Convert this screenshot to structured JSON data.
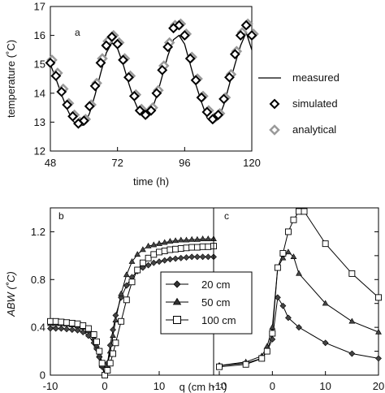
{
  "chart_data": [
    {
      "panel": "a",
      "type": "line",
      "xlabel": "time (h)",
      "ylabel": "temperature (˚C)",
      "xlim": [
        48,
        120
      ],
      "ylim": [
        12,
        17
      ],
      "xticks": [
        48,
        72,
        96,
        120
      ],
      "yticks": [
        12,
        13,
        14,
        15,
        16,
        17
      ],
      "legend_position": "right",
      "series": [
        {
          "name": "measured",
          "style": "line",
          "color": "#000000",
          "x": [
            48,
            50,
            52,
            54,
            56,
            58,
            60,
            62,
            64,
            66,
            68,
            70,
            72,
            74,
            76,
            78,
            80,
            82,
            84,
            86,
            88,
            90,
            92,
            94,
            96,
            98,
            100,
            102,
            104,
            106,
            108,
            110,
            112,
            114,
            116,
            118,
            120
          ],
          "y": [
            15.0,
            14.5,
            13.95,
            13.45,
            13.05,
            12.85,
            12.9,
            13.3,
            13.95,
            14.7,
            15.4,
            15.75,
            15.55,
            15.0,
            14.35,
            13.75,
            13.3,
            13.15,
            13.35,
            13.9,
            14.6,
            15.3,
            15.85,
            16.0,
            15.7,
            15.0,
            14.3,
            13.7,
            13.15,
            12.95,
            13.1,
            13.6,
            14.3,
            15.0,
            15.65,
            16.1,
            15.5
          ]
        },
        {
          "name": "simulated",
          "style": "marker",
          "marker": "diamond-open-black",
          "color": "#000000",
          "x": [
            48,
            50,
            52,
            54,
            56,
            58,
            60,
            62,
            64,
            66,
            68,
            70,
            72,
            74,
            76,
            78,
            80,
            82,
            84,
            86,
            88,
            90,
            92,
            94,
            96,
            98,
            100,
            102,
            104,
            106,
            108,
            110,
            112,
            114,
            116,
            118,
            120
          ],
          "y": [
            15.05,
            14.6,
            14.05,
            13.6,
            13.2,
            12.95,
            13.05,
            13.55,
            14.25,
            15.05,
            15.65,
            15.95,
            15.7,
            15.15,
            14.55,
            13.9,
            13.4,
            13.25,
            13.4,
            14.0,
            14.8,
            15.6,
            16.25,
            16.35,
            16.0,
            15.2,
            14.45,
            13.85,
            13.35,
            13.1,
            13.25,
            13.8,
            14.55,
            15.35,
            16.0,
            16.35,
            16.0
          ]
        },
        {
          "name": "analytical",
          "style": "marker",
          "marker": "diamond-gray",
          "color": "#999999",
          "x": [
            48,
            50,
            52,
            54,
            56,
            58,
            60,
            62,
            64,
            66,
            68,
            70,
            72,
            74,
            76,
            78,
            80,
            82,
            84,
            86,
            88,
            90,
            92,
            94,
            96,
            98,
            100,
            102,
            104,
            106,
            108,
            110,
            112,
            114,
            116,
            118,
            120
          ],
          "y": [
            15.15,
            14.7,
            14.15,
            13.65,
            13.25,
            13.0,
            13.1,
            13.6,
            14.35,
            15.2,
            15.8,
            16.0,
            15.75,
            15.2,
            14.6,
            13.95,
            13.45,
            13.3,
            13.5,
            14.1,
            14.95,
            15.75,
            16.35,
            16.4,
            16.05,
            15.25,
            14.5,
            13.9,
            13.4,
            13.15,
            13.3,
            13.85,
            14.65,
            15.45,
            16.1,
            16.4,
            16.05
          ]
        }
      ]
    },
    {
      "panel": "b",
      "type": "line",
      "xlabel": "q (cm h⁻¹)",
      "ylabel": "ABW (˚C)",
      "xlim": [
        -10,
        20
      ],
      "ylim": [
        0,
        1.4
      ],
      "xticks": [
        -10,
        0,
        10
      ],
      "yticks": [
        0,
        0.4,
        0.8,
        1.2
      ],
      "series": [
        {
          "name": "20 cm",
          "marker": "diamond",
          "x": [
            -10,
            -9,
            -8,
            -7,
            -6,
            -5,
            -4,
            -3,
            -2,
            -1.5,
            -1,
            -0.5,
            0,
            0.5,
            1,
            1.5,
            2,
            3,
            4,
            5,
            6,
            7,
            8,
            9,
            10,
            11,
            12,
            13,
            14,
            15,
            16,
            17,
            18,
            19,
            20
          ],
          "y": [
            0.39,
            0.39,
            0.39,
            0.385,
            0.38,
            0.375,
            0.36,
            0.33,
            0.27,
            0.22,
            0.15,
            0.07,
            0.0,
            0.1,
            0.25,
            0.38,
            0.5,
            0.65,
            0.75,
            0.82,
            0.87,
            0.9,
            0.92,
            0.94,
            0.95,
            0.96,
            0.97,
            0.975,
            0.98,
            0.985,
            0.99,
            0.99,
            0.99,
            0.99,
            0.99
          ]
        },
        {
          "name": "50 cm",
          "marker": "triangle",
          "x": [
            -10,
            -9,
            -8,
            -7,
            -6,
            -5,
            -4,
            -3,
            -2,
            -1.5,
            -1,
            -0.5,
            0,
            0.5,
            1,
            1.5,
            2,
            3,
            4,
            5,
            6,
            7,
            8,
            9,
            10,
            11,
            12,
            13,
            14,
            15,
            16,
            17,
            18,
            19,
            20
          ],
          "y": [
            0.43,
            0.43,
            0.43,
            0.425,
            0.42,
            0.41,
            0.4,
            0.37,
            0.31,
            0.25,
            0.17,
            0.08,
            0.0,
            0.08,
            0.2,
            0.33,
            0.46,
            0.68,
            0.84,
            0.95,
            1.01,
            1.05,
            1.08,
            1.09,
            1.1,
            1.11,
            1.12,
            1.125,
            1.13,
            1.13,
            1.135,
            1.135,
            1.14,
            1.14,
            1.14
          ]
        },
        {
          "name": "100 cm",
          "marker": "square-open",
          "x": [
            -10,
            -9,
            -8,
            -7,
            -6,
            -5,
            -4,
            -3,
            -2,
            -1.5,
            -1,
            -0.5,
            0,
            0.5,
            1,
            1.5,
            2,
            3,
            4,
            5,
            6,
            7,
            8,
            9,
            10,
            11,
            12,
            13,
            14,
            15,
            16,
            17,
            18,
            19,
            20
          ],
          "y": [
            0.45,
            0.45,
            0.445,
            0.44,
            0.435,
            0.43,
            0.415,
            0.39,
            0.34,
            0.28,
            0.2,
            0.1,
            0.0,
            0.04,
            0.1,
            0.18,
            0.27,
            0.45,
            0.63,
            0.78,
            0.88,
            0.94,
            0.98,
            1.01,
            1.03,
            1.04,
            1.05,
            1.055,
            1.06,
            1.065,
            1.07,
            1.07,
            1.075,
            1.075,
            1.08
          ]
        }
      ]
    },
    {
      "panel": "c",
      "type": "line",
      "xlabel": "",
      "ylabel": "",
      "xlim": [
        -10,
        20
      ],
      "ylim": [
        0,
        1.4
      ],
      "xticks": [
        -10,
        0,
        10,
        20
      ],
      "series": [
        {
          "name": "20 cm",
          "marker": "diamond",
          "x": [
            -10,
            -5,
            -2,
            -1,
            0,
            1,
            2,
            3,
            5,
            10,
            15,
            20
          ],
          "y": [
            0.08,
            0.1,
            0.14,
            0.2,
            0.3,
            0.65,
            0.58,
            0.48,
            0.4,
            0.27,
            0.18,
            0.14
          ]
        },
        {
          "name": "50 cm",
          "marker": "triangle",
          "x": [
            -10,
            -5,
            -2,
            -1,
            0,
            1,
            2,
            3,
            4,
            5,
            10,
            15,
            20
          ],
          "y": [
            0.08,
            0.11,
            0.16,
            0.24,
            0.4,
            0.9,
            0.98,
            1.03,
            0.99,
            0.85,
            0.6,
            0.45,
            0.36
          ]
        },
        {
          "name": "100 cm",
          "marker": "square-open",
          "x": [
            -10,
            -5,
            -2,
            -1,
            0,
            1,
            2,
            3,
            4,
            5,
            6,
            10,
            15,
            20
          ],
          "y": [
            0.07,
            0.09,
            0.14,
            0.2,
            0.35,
            0.9,
            1.02,
            1.2,
            1.3,
            1.37,
            1.37,
            1.1,
            0.85,
            0.65
          ]
        }
      ]
    }
  ]
}
